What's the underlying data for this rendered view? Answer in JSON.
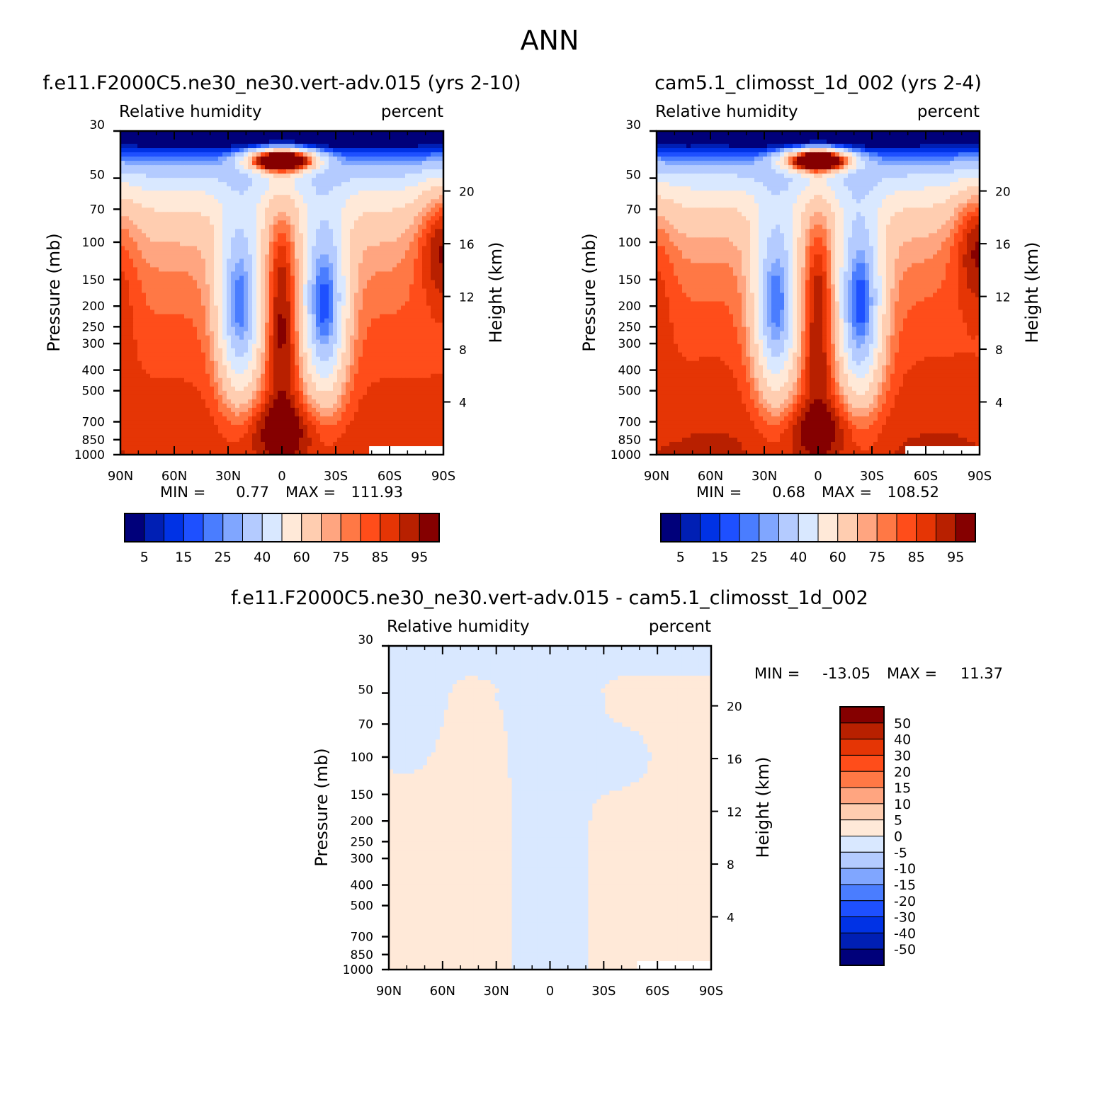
{
  "page": {
    "title": "ANN"
  },
  "chart_data": [
    {
      "type": "heatmap",
      "id": "p1",
      "title": "f.e11.F2000C5.ne30_ne30.vert-adv.015 (yrs 2-10)",
      "left_label": "Relative humidity",
      "right_label": "percent",
      "ylabel": "Pressure (mb)",
      "ylabel_right": "Height (km)",
      "x_ticks": [
        "90N",
        "60N",
        "30N",
        "0",
        "30S",
        "60S",
        "90S"
      ],
      "y_ticks": [
        "30",
        "50",
        "70",
        "100",
        "150",
        "200",
        "250",
        "300",
        "400",
        "500",
        "700",
        "850",
        "1000"
      ],
      "y_ticks_right": [
        "20",
        "16",
        "12",
        "8",
        "4"
      ],
      "stats": {
        "min_label": "MIN =",
        "min": "0.77",
        "max_label": "MAX =",
        "max": "111.93"
      },
      "colorbar": {
        "labels": [
          "5",
          "15",
          "25",
          "40",
          "60",
          "75",
          "85",
          "95"
        ],
        "colors": [
          "#00007a",
          "#001fb4",
          "#0032e5",
          "#1e50ff",
          "#4a7dff",
          "#80a6ff",
          "#b4cbff",
          "#d9e8ff",
          "#ffe9d8",
          "#ffcdb0",
          "#ffa580",
          "#ff7845",
          "#ff4d1a",
          "#e53505",
          "#b82000",
          "#850000"
        ]
      }
    },
    {
      "type": "heatmap",
      "id": "p2",
      "title": "cam5.1_climosst_1d_002 (yrs 2-4)",
      "left_label": "Relative humidity",
      "right_label": "percent",
      "ylabel": "Pressure (mb)",
      "ylabel_right": "Height (km)",
      "x_ticks": [
        "90N",
        "60N",
        "30N",
        "0",
        "30S",
        "60S",
        "90S"
      ],
      "y_ticks": [
        "30",
        "50",
        "70",
        "100",
        "150",
        "200",
        "250",
        "300",
        "400",
        "500",
        "700",
        "850",
        "1000"
      ],
      "y_ticks_right": [
        "20",
        "16",
        "12",
        "8",
        "4"
      ],
      "stats": {
        "min_label": "MIN =",
        "min": "0.68",
        "max_label": "MAX =",
        "max": "108.52"
      },
      "colorbar": {
        "labels": [
          "5",
          "15",
          "25",
          "40",
          "60",
          "75",
          "85",
          "95"
        ],
        "colors": [
          "#00007a",
          "#001fb4",
          "#0032e5",
          "#1e50ff",
          "#4a7dff",
          "#80a6ff",
          "#b4cbff",
          "#d9e8ff",
          "#ffe9d8",
          "#ffcdb0",
          "#ffa580",
          "#ff7845",
          "#ff4d1a",
          "#e53505",
          "#b82000",
          "#850000"
        ]
      }
    },
    {
      "type": "heatmap",
      "id": "p3",
      "title": "f.e11.F2000C5.ne30_ne30.vert-adv.015 - cam5.1_climosst_1d_002",
      "left_label": "Relative humidity",
      "right_label": "percent",
      "ylabel": "Pressure (mb)",
      "ylabel_right": "Height (km)",
      "x_ticks": [
        "90N",
        "60N",
        "30N",
        "0",
        "30S",
        "60S",
        "90S"
      ],
      "y_ticks": [
        "30",
        "50",
        "70",
        "100",
        "150",
        "200",
        "250",
        "300",
        "400",
        "500",
        "700",
        "850",
        "1000"
      ],
      "y_ticks_right": [
        "20",
        "16",
        "12",
        "8",
        "4"
      ],
      "stats": {
        "min_label": "MIN =",
        "min": "-13.05",
        "max_label": "MAX =",
        "max": "11.37"
      },
      "colorbar": {
        "labels": [
          "50",
          "40",
          "30",
          "20",
          "15",
          "10",
          "5",
          "0",
          "-5",
          "-10",
          "-15",
          "-20",
          "-30",
          "-40",
          "-50"
        ],
        "colors": [
          "#850000",
          "#b82000",
          "#e53505",
          "#ff4d1a",
          "#ff7845",
          "#ffa580",
          "#ffcdb0",
          "#ffe9d8",
          "#d9e8ff",
          "#b4cbff",
          "#80a6ff",
          "#4a7dff",
          "#1e50ff",
          "#0032e5",
          "#001fb4",
          "#00007a"
        ]
      }
    }
  ]
}
